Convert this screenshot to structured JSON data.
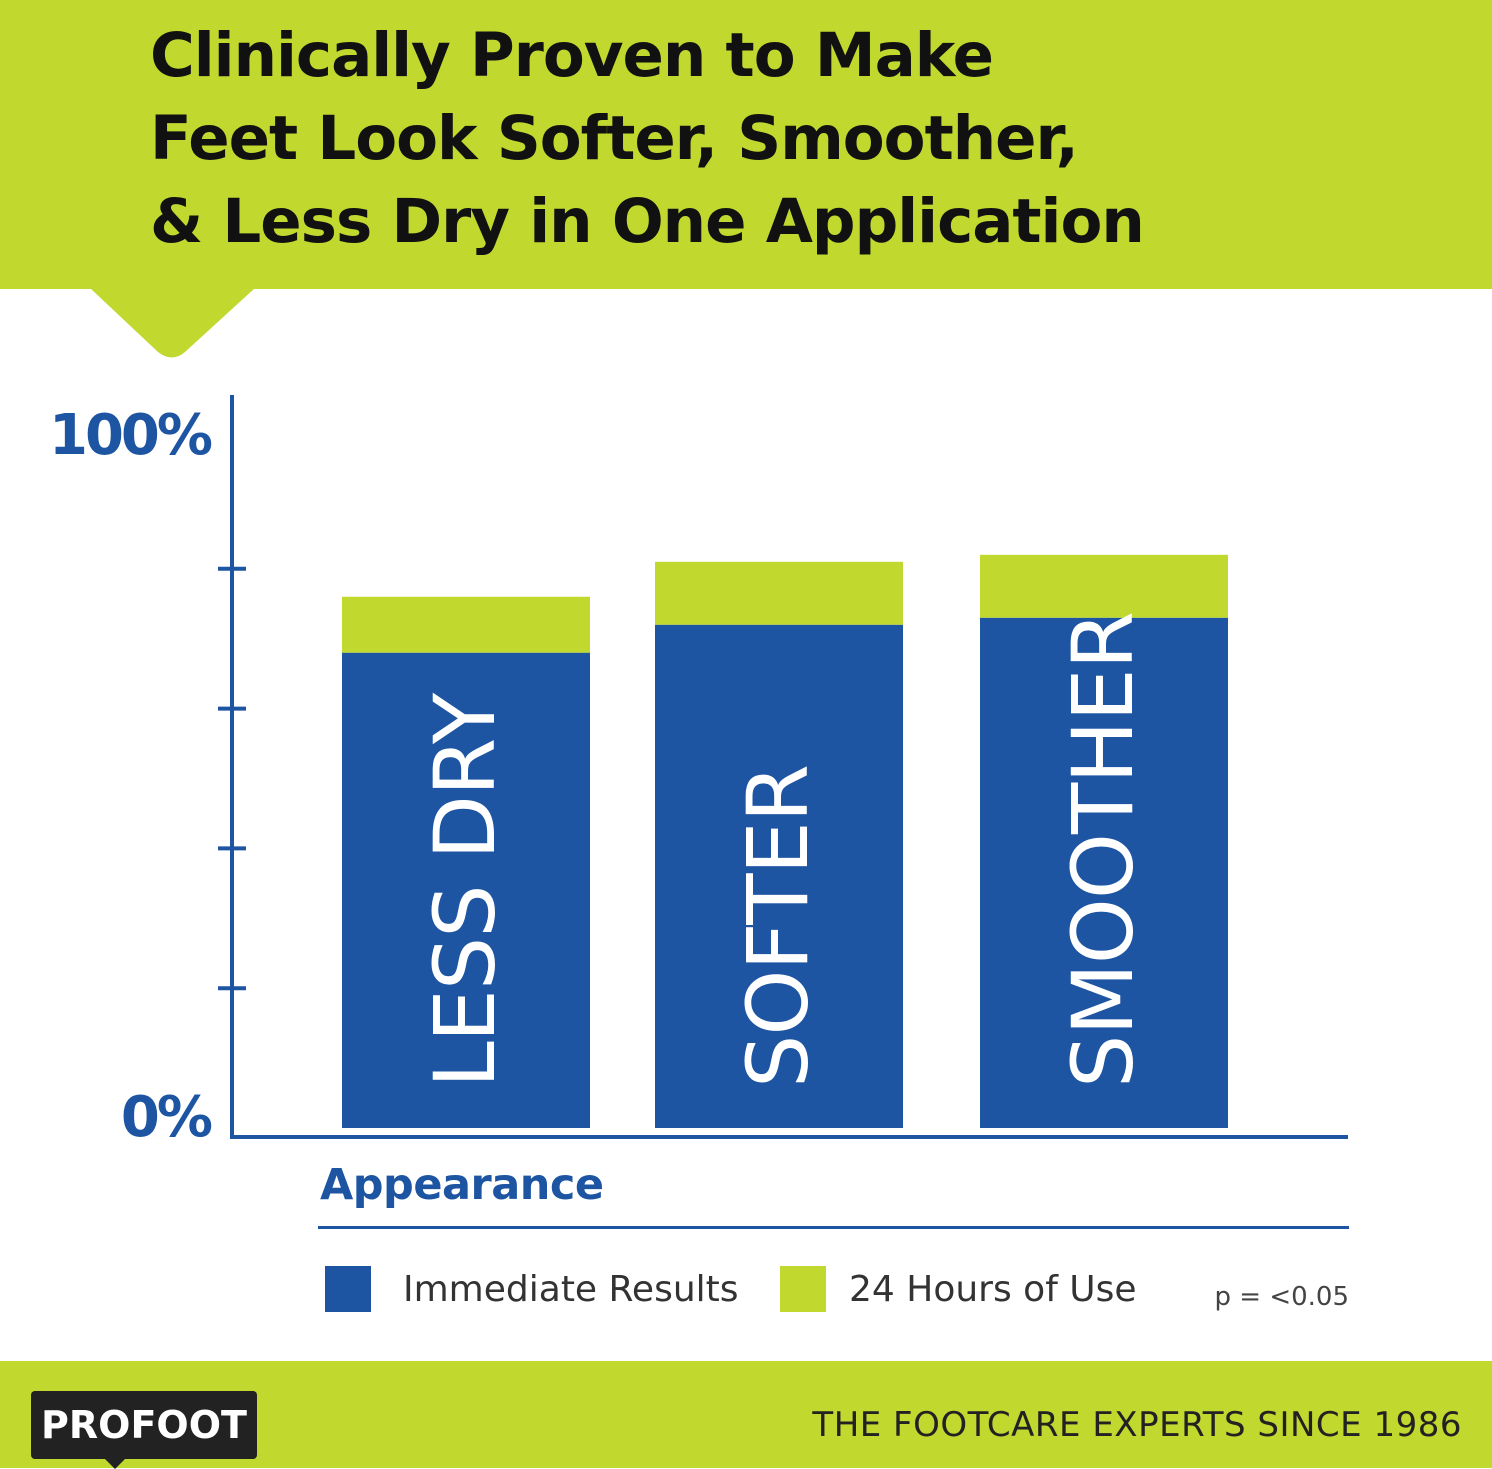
{
  "header": {
    "title_lines": [
      "Clinically Proven to Make",
      "Feet Look Softer, Smoother,",
      "& Less Dry in One Application"
    ]
  },
  "chart_data": {
    "type": "bar",
    "stacked": true,
    "categories": [
      "LESS DRY",
      "SOFTER",
      "SMOOTHER"
    ],
    "series": [
      {
        "name": "Immediate Results",
        "color": "#1d55a3",
        "values": [
          68,
          72,
          73
        ]
      },
      {
        "name": "24 Hours of Use",
        "color": "#c1d82f",
        "values": [
          8,
          9,
          9
        ]
      }
    ],
    "xlabel": "Appearance",
    "ylim": [
      0,
      100
    ],
    "ytick_labels": [
      "0%",
      "100%"
    ],
    "minor_ticks": 4,
    "grid": false,
    "legend_position": "bottom",
    "category_labels_inside_bars": true,
    "annotation": "p = <0.05"
  },
  "colors": {
    "brand_green": "#c1d82f",
    "brand_blue": "#1d55a3"
  },
  "footer": {
    "logo_text": "PROFOOT",
    "tagline": "THE FOOTCARE EXPERTS SINCE 1986"
  }
}
